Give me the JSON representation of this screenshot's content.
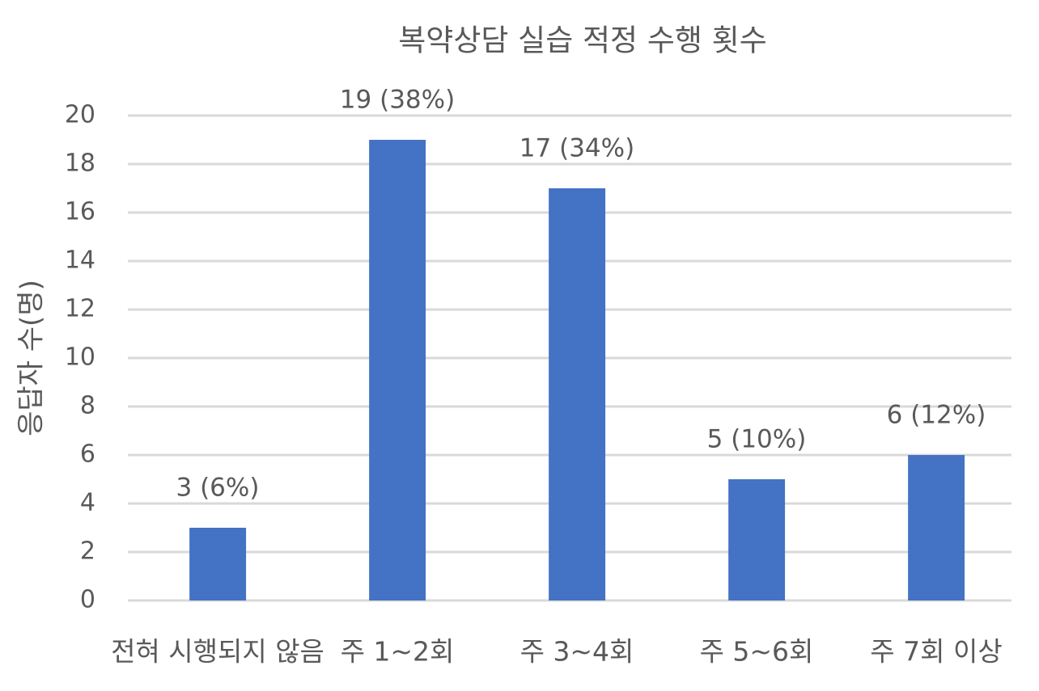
{
  "chart_data": {
    "type": "bar",
    "title": "복약상담 실습 적정 수행 횟수",
    "y_label": "응답자 수(명)",
    "categories": [
      "전혀 시행되지 않음",
      "주 1~2회",
      "주 3~4회",
      "주 5~6회",
      "주 7회 이상"
    ],
    "values": [
      3,
      19,
      17,
      5,
      6
    ],
    "value_labels": [
      "3 (6%)",
      "19 (38%)",
      "17 (34%)",
      "5 (10%)",
      "6 (12%)"
    ],
    "color": "#4472c4",
    "ylim": [
      0,
      20
    ],
    "yticks": [
      0,
      2,
      4,
      6,
      8,
      10,
      12,
      14,
      16,
      18,
      20
    ],
    "grid": true
  }
}
